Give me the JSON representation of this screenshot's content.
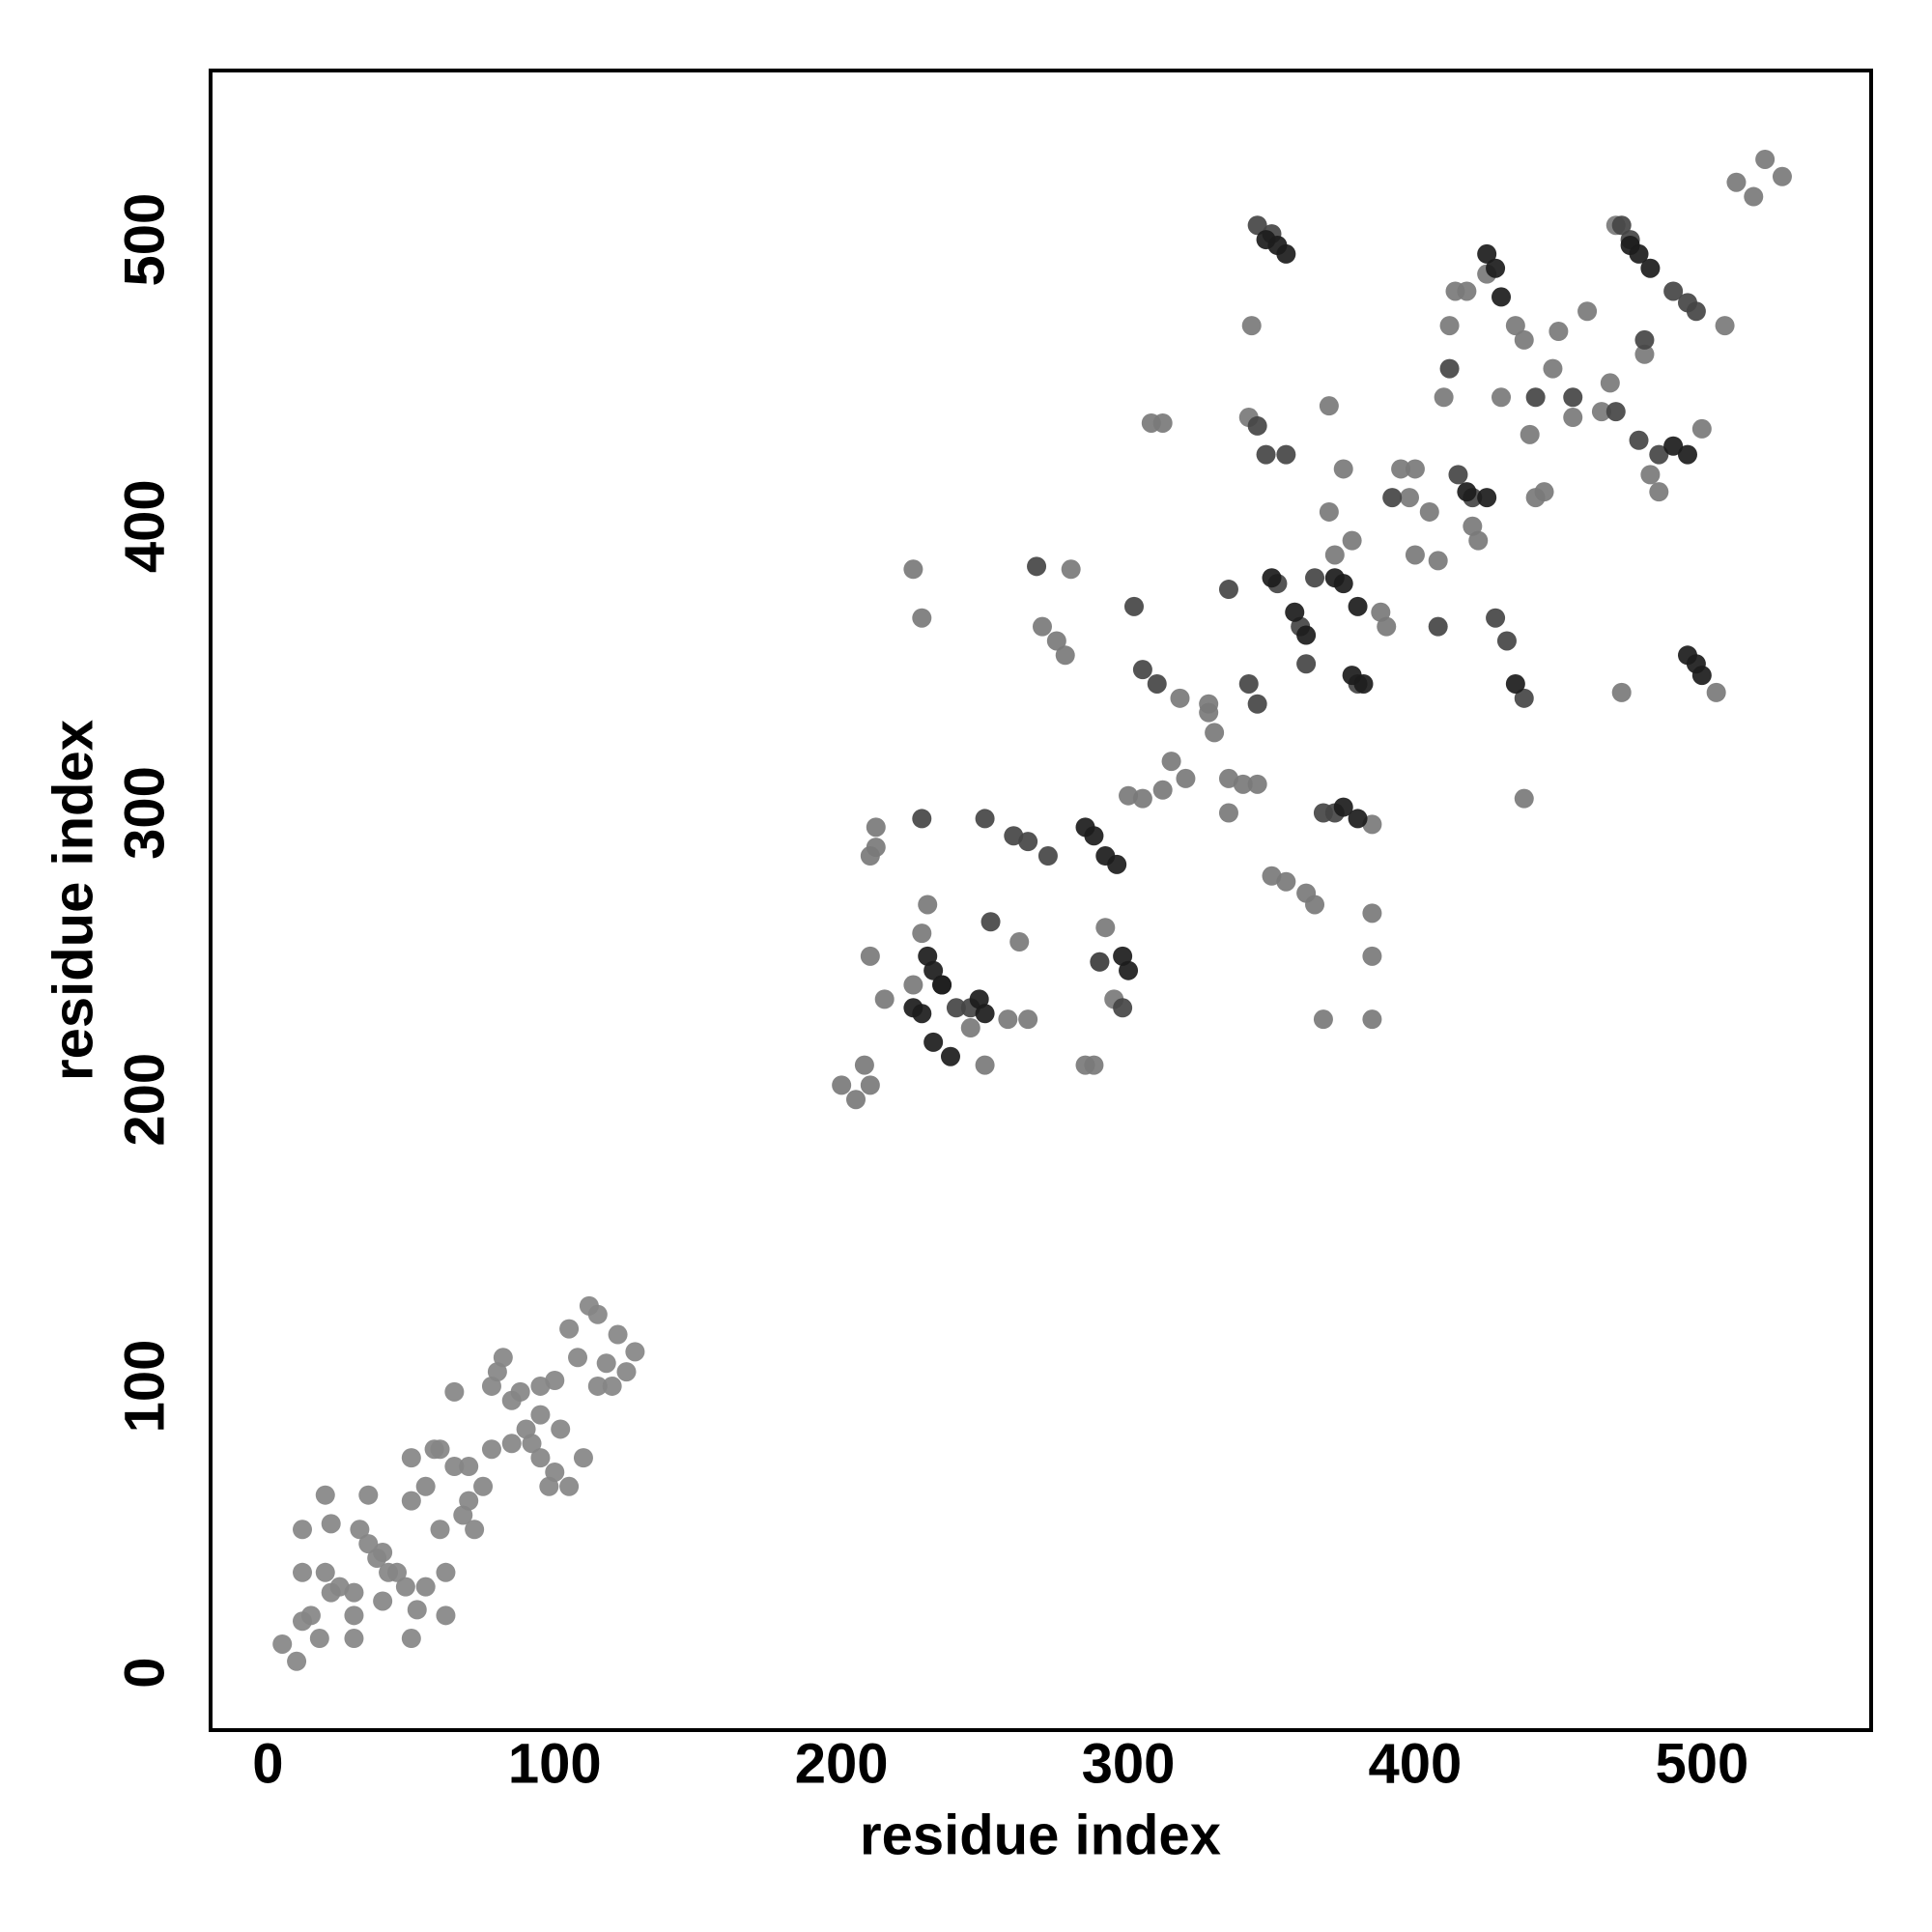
{
  "chart_data": {
    "type": "scatter",
    "xlabel": "residue index",
    "ylabel": "residue index",
    "xlim": [
      -20,
      559
    ],
    "ylim": [
      -20,
      559
    ],
    "xticks": [
      0,
      100,
      200,
      300,
      400,
      500
    ],
    "yticks": [
      0,
      100,
      200,
      300,
      400,
      500
    ],
    "grid": false,
    "series": [
      {
        "color": "#858585",
        "x": [
          5,
          10,
          12,
          15,
          18,
          20,
          22,
          25,
          12,
          12,
          20,
          22,
          30,
          30,
          32,
          35,
          35,
          38,
          40,
          42,
          45,
          48,
          50,
          50,
          52,
          55,
          55,
          58,
          60,
          62,
          62,
          65,
          68,
          70,
          72,
          75,
          78,
          78,
          80,
          82,
          85,
          88,
          90,
          92,
          95,
          95,
          98,
          100,
          102,
          105,
          108,
          110,
          112,
          115,
          118,
          120,
          122,
          125,
          128,
          65,
          60,
          40,
          30,
          50,
          70,
          85,
          95,
          105,
          115,
          100
        ],
        "y": [
          10,
          4,
          18,
          20,
          12,
          35,
          28,
          30,
          35,
          50,
          62,
          52,
          12,
          28,
          50,
          62,
          45,
          40,
          42,
          35,
          35,
          30,
          60,
          12,
          22,
          65,
          30,
          78,
          50,
          35,
          20,
          72,
          55,
          60,
          50,
          65,
          78,
          100,
          105,
          110,
          95,
          98,
          85,
          80,
          75,
          90,
          65,
          102,
          85,
          120,
          110,
          75,
          128,
          125,
          108,
          100,
          118,
          105,
          112,
          98,
          78,
          25,
          20,
          75,
          72,
          80,
          100,
          65,
          100,
          70
        ]
      },
      {
        "color": "#7a7a7a",
        "x": [
          200,
          205,
          208,
          210,
          212,
          212,
          210,
          215,
          225,
          228,
          228,
          230,
          245,
          250,
          258,
          265,
          262,
          270,
          275,
          278,
          280,
          285,
          288,
          290,
          292,
          295,
          300,
          305,
          308,
          312,
          312,
          315,
          318,
          320,
          328,
          330,
          335,
          340,
          342,
          343,
          345,
          350,
          355,
          362,
          365,
          368,
          370,
          370,
          372,
          375,
          378,
          385,
          385,
          385,
          385,
          388,
          390,
          395,
          398,
          400,
          400,
          405,
          408,
          410,
          412,
          414,
          418,
          420,
          422,
          425,
          430,
          435,
          438,
          438,
          440,
          442,
          445,
          448,
          450,
          455,
          460,
          465,
          468,
          470,
          472,
          480,
          482,
          485,
          500,
          505,
          508,
          512,
          518,
          522,
          528,
          210,
          225,
          335,
          328
        ],
        "y": [
          205,
          200,
          212,
          205,
          288,
          295,
          250,
          235,
          385,
          368,
          258,
          268,
          225,
          212,
          228,
          228,
          255,
          365,
          360,
          355,
          385,
          212,
          212,
          248,
          260,
          235,
          306,
          305,
          436,
          436,
          308,
          318,
          340,
          312,
          338,
          328,
          312,
          310,
          438,
          470,
          310,
          278,
          276,
          272,
          268,
          228,
          442,
          405,
          390,
          420,
          395,
          296,
          265,
          250,
          228,
          370,
          365,
          420,
          410,
          420,
          390,
          405,
          388,
          445,
          470,
          482,
          482,
          400,
          395,
          488,
          445,
          470,
          305,
          465,
          432,
          410,
          412,
          455,
          468,
          438,
          475,
          440,
          450,
          505,
          342,
          460,
          418,
          412,
          434,
          342,
          470,
          520,
          515,
          528,
          522,
          285,
          240,
          300,
          335
        ]
      },
      {
        "color": "#454545",
        "x": [
          228,
          235,
          240,
          245,
          250,
          252,
          260,
          265,
          268,
          272,
          290,
          298,
          302,
          305,
          310,
          335,
          342,
          345,
          345,
          348,
          355,
          352,
          360,
          362,
          365,
          368,
          372,
          380,
          392,
          408,
          412,
          415,
          420,
          428,
          432,
          438,
          442,
          455,
          470,
          478,
          480,
          485,
          490,
          495,
          498,
          475,
          472,
          350,
          345
        ],
        "y": [
          298,
          240,
          232,
          232,
          298,
          262,
          292,
          290,
          386,
          285,
          248,
          232,
          372,
          350,
          345,
          378,
          345,
          338,
          435,
          425,
          425,
          380,
          365,
          352,
          382,
          300,
          300,
          345,
          410,
          365,
          455,
          418,
          410,
          368,
          360,
          340,
          445,
          445,
          440,
          430,
          465,
          425,
          482,
          478,
          475,
          500,
          505,
          502,
          505
        ]
      },
      {
        "color": "#1c1c1c",
        "x": [
          230,
          232,
          235,
          225,
          228,
          232,
          238,
          248,
          250,
          285,
          288,
          292,
          296,
          298,
          300,
          348,
          352,
          355,
          372,
          375,
          380,
          378,
          382,
          375,
          380,
          425,
          428,
          430,
          435,
          495,
          498,
          500,
          475,
          478,
          482,
          350,
          358,
          362,
          418,
          425,
          490,
          495
        ],
        "y": [
          250,
          245,
          240,
          232,
          230,
          220,
          215,
          235,
          230,
          295,
          292,
          285,
          282,
          250,
          245,
          500,
          498,
          495,
          382,
          380,
          372,
          348,
          345,
          302,
          298,
          495,
          490,
          480,
          345,
          355,
          352,
          348,
          498,
          495,
          490,
          382,
          370,
          362,
          412,
          410,
          428,
          425
        ]
      }
    ]
  }
}
